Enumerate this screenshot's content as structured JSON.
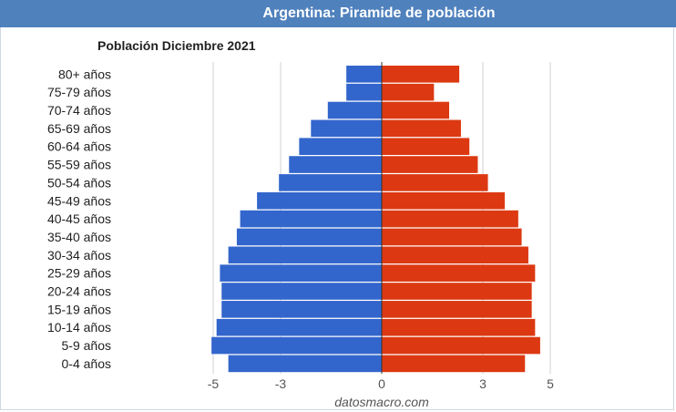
{
  "header": {
    "title": "Argentina: Piramide de población"
  },
  "chart_data": {
    "type": "bar",
    "orientation": "horizontal",
    "title": "Población Diciembre 2021",
    "source": "datosmacro.com",
    "categories": [
      "80+ años",
      "75-79 años",
      "70-74 años",
      "65-69 años",
      "60-64 años",
      "55-59 años",
      "50-54 años",
      "45-49 años",
      "40-45 años",
      "35-40 años",
      "30-34 años",
      "25-29 años",
      "20-24 años",
      "15-19 años",
      "10-14 años",
      "5-9 años",
      "0-4 años"
    ],
    "series": [
      {
        "color": "#3366cc",
        "values": [
          -1.05,
          -1.05,
          -1.6,
          -2.1,
          -2.45,
          -2.75,
          -3.05,
          -3.7,
          -4.2,
          -4.3,
          -4.55,
          -4.8,
          -4.75,
          -4.75,
          -4.9,
          -5.05,
          -4.55
        ]
      },
      {
        "color": "#dc3912",
        "values": [
          2.3,
          1.55,
          2.0,
          2.35,
          2.6,
          2.85,
          3.15,
          3.65,
          4.05,
          4.15,
          4.35,
          4.55,
          4.45,
          4.45,
          4.55,
          4.7,
          4.25
        ]
      }
    ],
    "xlim": [
      -6,
      6
    ],
    "xticks": [
      {
        "value": -5,
        "label": "-5"
      },
      {
        "value": -3,
        "label": "-3"
      },
      {
        "value": 0,
        "label": "0"
      },
      {
        "value": 3,
        "label": "3"
      },
      {
        "value": 5,
        "label": "5"
      }
    ],
    "grid": true
  }
}
